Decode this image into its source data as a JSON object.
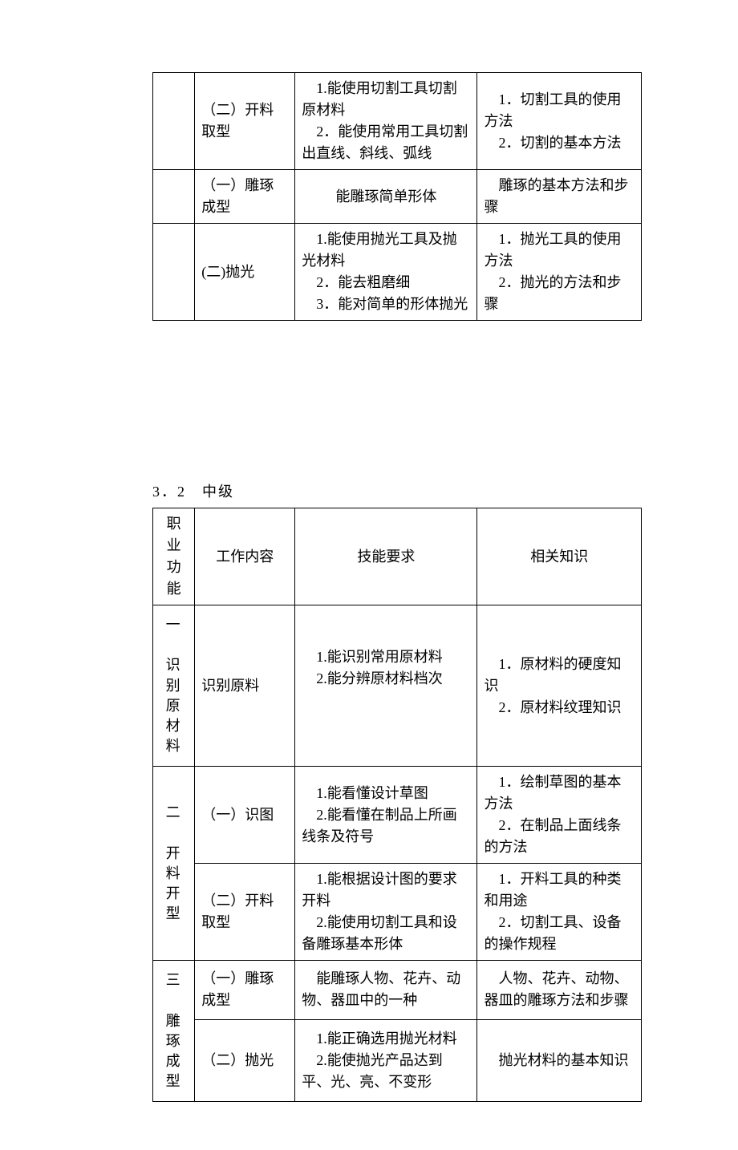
{
  "table1": {
    "rows": [
      {
        "func": "",
        "work": "（二）开料取型",
        "skill": "　1.能使用切割工具切割原材料\n　2．能使用常用工具切割出直线、斜线、弧线",
        "know": "　1．切割工具的使用方法\n　2．切割的基本方法"
      },
      {
        "func": "",
        "work": "（一）雕琢成型",
        "skill": "能雕琢简单形体",
        "skill_center": true,
        "know": "　雕琢的基本方法和步骤"
      },
      {
        "func": "",
        "work": "(二)抛光",
        "skill": "　1.能使用抛光工具及抛光材料\n　2．能去粗磨细\n　3．能对简单的形体抛光",
        "know": "　1．抛光工具的使用方法\n　2．抛光的方法和步骤"
      }
    ]
  },
  "section_title": "3．2　中级",
  "table2": {
    "header": {
      "func": "职业功能",
      "work": "工作内容",
      "skill": "技能要求",
      "know": "相关知识"
    },
    "groups": [
      {
        "func": "一\n\n识别原材料",
        "rows": [
          {
            "work": "识别原料",
            "skill": "　1.能识别常用原材料\n　2.能分辨原材料档次",
            "know": "　1．原材料的硬度知识\n　2．原材料纹理知识"
          }
        ]
      },
      {
        "func": "二\n\n开料开型",
        "rows": [
          {
            "work": "（一）识图",
            "skill": "　1.能看懂设计草图\n　2.能看懂在制品上所画线条及符号",
            "know": "　1．绘制草图的基本方法\n　2．在制品上面线条的方法"
          },
          {
            "work": "（二）开料取型",
            "skill": "　1.能根据设计图的要求开料\n　2.能使用切割工具和设备雕琢基本形体",
            "know": "　1．开料工具的种类和用途\n　2．切割工具、设备的操作规程"
          }
        ]
      },
      {
        "func": "三\n\n雕琢成型",
        "rows": [
          {
            "work": "（一）雕琢成型",
            "skill": "　能雕琢人物、花卉、动物、器皿中的一种",
            "know": "　人物、花卉、动物、器皿的雕琢方法和步骤"
          },
          {
            "work": "（二）抛光",
            "skill": "　1.能正确选用抛光材料\n　2.能使抛光产品达到平、光、亮、不变形",
            "know": "　抛光材料的基本知识"
          }
        ]
      }
    ]
  },
  "colors": {
    "text": "#000000",
    "border": "#000000",
    "background": "#ffffff"
  },
  "font": {
    "family": "SimSun",
    "size_pt": 14
  }
}
